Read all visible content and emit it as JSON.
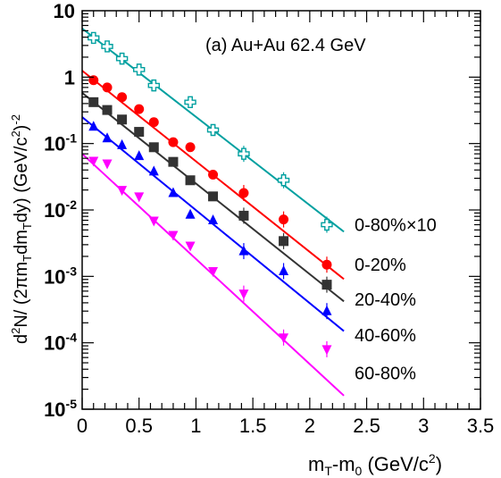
{
  "chart_data": {
    "type": "scatter",
    "title": "",
    "annotation": "(a) Au+Au 62.4 GeV",
    "xlabel": "m_T-m_0 (GeV/c^2)",
    "ylabel": "d^2N/(2πm_T dm_T dy) (GeV/c^2)^-2",
    "xlim": [
      0,
      3.5
    ],
    "ylim": [
      1e-05,
      10
    ],
    "y_scale": "log",
    "x_ticks": [
      "0",
      "0.5",
      "1",
      "1.5",
      "2",
      "2.5",
      "3",
      "3.5"
    ],
    "y_ticks": [
      {
        "base": "10",
        "exp": "-5",
        "value": 1e-05
      },
      {
        "base": "10",
        "exp": "-4",
        "value": 0.0001
      },
      {
        "base": "10",
        "exp": "-3",
        "value": 0.001
      },
      {
        "base": "10",
        "exp": "-2",
        "value": 0.01
      },
      {
        "base": "10",
        "exp": "-1",
        "value": 0.1
      },
      {
        "base": "1",
        "exp": "",
        "value": 1
      },
      {
        "base": "10",
        "exp": "",
        "value": 10
      }
    ],
    "grid": false,
    "series": [
      {
        "name": "0-80%×10",
        "color": "#00A0A0",
        "marker": "open-cross",
        "x": [
          0.1,
          0.22,
          0.35,
          0.5,
          0.63,
          0.95,
          1.15,
          1.42,
          1.77,
          2.15
        ],
        "y": [
          3.9,
          2.9,
          1.9,
          1.3,
          0.75,
          0.42,
          0.16,
          0.07,
          0.028,
          0.006
        ],
        "fit": [
          [
            0,
            5.4
          ],
          [
            2.3,
            0.0047
          ]
        ]
      },
      {
        "name": "0-20%",
        "color": "#FF0000",
        "marker": "filled-circle",
        "x": [
          0.1,
          0.22,
          0.35,
          0.5,
          0.63,
          0.8,
          0.95,
          1.15,
          1.42,
          1.77,
          2.15
        ],
        "y": [
          0.9,
          0.7,
          0.5,
          0.33,
          0.21,
          0.105,
          0.088,
          0.034,
          0.018,
          0.0072,
          0.0015
        ],
        "fit": [
          [
            0,
            1.25
          ],
          [
            2.3,
            0.00091
          ]
        ]
      },
      {
        "name": "20-40%",
        "color": "#333333",
        "marker": "filled-square",
        "x": [
          0.1,
          0.22,
          0.35,
          0.5,
          0.63,
          0.8,
          0.95,
          1.15,
          1.42,
          1.77,
          2.15
        ],
        "y": [
          0.42,
          0.32,
          0.23,
          0.15,
          0.088,
          0.053,
          0.028,
          0.016,
          0.0082,
          0.0034,
          0.00075
        ],
        "fit": [
          [
            0,
            0.58
          ],
          [
            2.3,
            0.00042
          ]
        ]
      },
      {
        "name": "40-60%",
        "color": "#0000FF",
        "marker": "filled-triangle-up",
        "x": [
          0.1,
          0.22,
          0.35,
          0.5,
          0.63,
          0.8,
          0.95,
          1.15,
          1.42,
          1.77,
          2.15
        ],
        "y": [
          0.18,
          0.12,
          0.095,
          0.065,
          0.038,
          0.018,
          0.0085,
          0.007,
          0.0024,
          0.0012,
          0.0003
        ],
        "fit": [
          [
            0,
            0.25
          ],
          [
            2.3,
            0.00015
          ]
        ]
      },
      {
        "name": "60-80%",
        "color": "#FF00FF",
        "marker": "filled-triangle-down",
        "x": [
          0.1,
          0.22,
          0.35,
          0.5,
          0.63,
          0.8,
          0.95,
          1.15,
          1.42,
          1.77,
          2.15
        ],
        "y": [
          0.055,
          0.05,
          0.02,
          0.016,
          0.0069,
          0.0042,
          0.0029,
          0.0012,
          0.00055,
          0.00012,
          8e-05
        ],
        "fit": [
          [
            0,
            0.07
          ],
          [
            2.3,
            1.6e-05
          ]
        ]
      }
    ],
    "series_labels": [
      {
        "text": "0-80%×10",
        "at_y": 0.006
      },
      {
        "text": "0-20%",
        "at_y": 0.0015
      },
      {
        "text": "20-40%",
        "at_y": 0.00045
      },
      {
        "text": "40-60%",
        "at_y": 0.00013
      },
      {
        "text": "60-80%",
        "at_y": 3.5e-05
      }
    ]
  }
}
